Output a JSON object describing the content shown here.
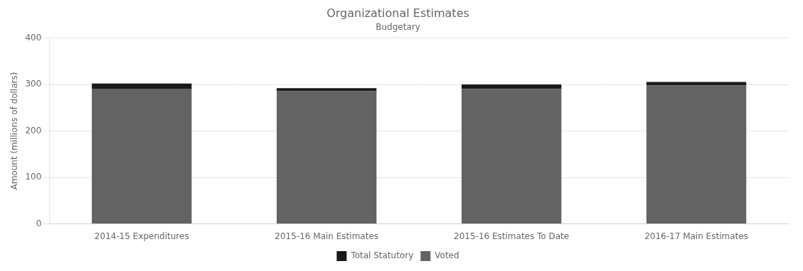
{
  "chart_data": {
    "type": "bar",
    "title": "Organizational Estimates",
    "subtitle": "Budgetary",
    "categories": [
      "2014-15 Expenditures",
      "2015-16 Main Estimates",
      "2015-16 Estimates To Date",
      "2016-17 Main Estimates"
    ],
    "series": [
      {
        "name": "Voted",
        "color": "#636363",
        "values": [
          291.0,
          285.5,
          290.5,
          298.0
        ]
      },
      {
        "name": "Total Statutory",
        "color": "#1a1a1a",
        "values": [
          11.0,
          6.5,
          9.5,
          7.5
        ]
      }
    ],
    "stacked": true,
    "ylabel": "Amount (millions of dollars)",
    "ylim": [
      0,
      400
    ],
    "yticks": [
      0,
      100,
      200,
      300,
      400
    ],
    "grid": true,
    "legend": "bottom"
  }
}
